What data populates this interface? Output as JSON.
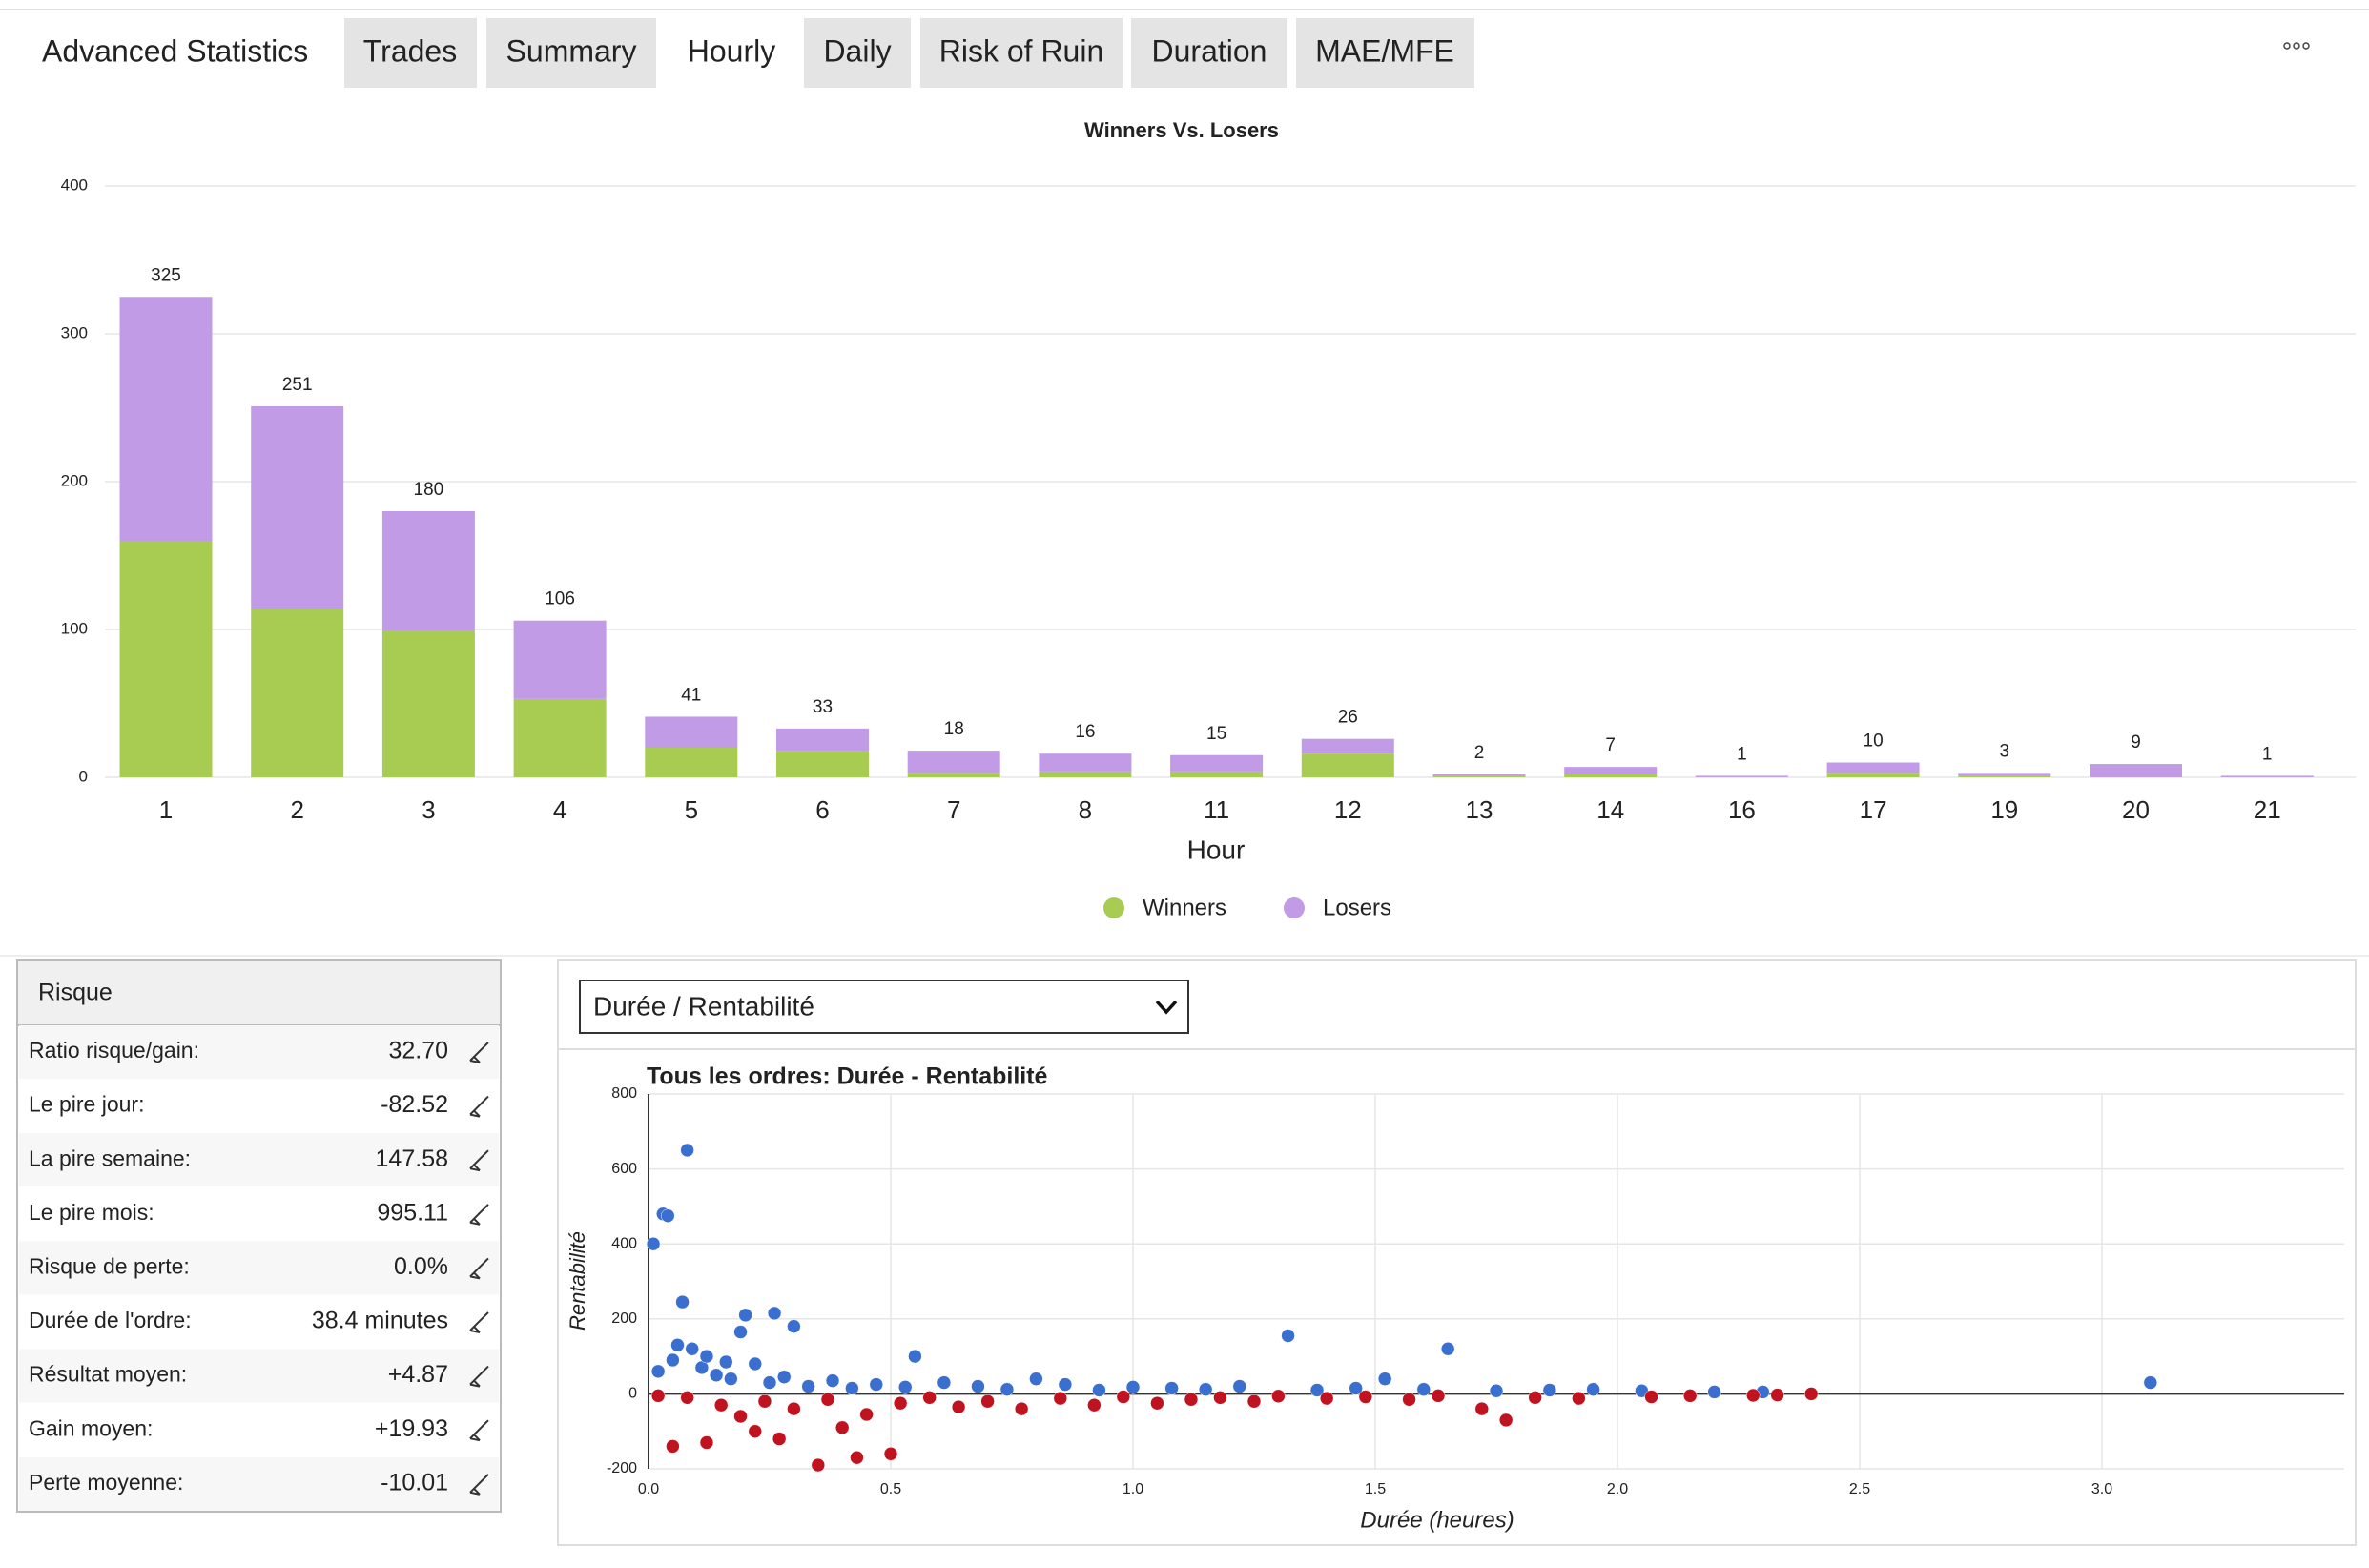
{
  "tabs": [
    "Advanced Statistics",
    "Trades",
    "Summary",
    "Hourly",
    "Daily",
    "Risk of Ruin",
    "Duration",
    "MAE/MFE"
  ],
  "bar_chart": {
    "type": "bar",
    "title": "Winners Vs. Losers",
    "x_label": "Hour",
    "categories": [
      "1",
      "2",
      "3",
      "4",
      "5",
      "6",
      "7",
      "8",
      "11",
      "12",
      "13",
      "14",
      "16",
      "17",
      "19",
      "20",
      "21"
    ],
    "series": [
      {
        "name": "Winners",
        "color": "#a8cc52",
        "values": [
          160,
          114,
          99,
          53,
          20,
          18,
          3,
          4,
          4,
          16,
          1,
          2,
          0,
          3,
          1,
          0,
          0
        ]
      },
      {
        "name": "Losers",
        "color": "#c29be6",
        "values": [
          165,
          137,
          81,
          53,
          21,
          15,
          15,
          12,
          11,
          10,
          1,
          5,
          1,
          7,
          2,
          9,
          1
        ]
      }
    ],
    "totals": [
      325,
      251,
      180,
      106,
      41,
      33,
      18,
      16,
      15,
      26,
      2,
      7,
      1,
      10,
      3,
      9,
      1
    ],
    "ylim": [
      0,
      400
    ],
    "yticks": [
      0,
      100,
      200,
      300,
      400
    ],
    "grid": true
  },
  "risk_table": {
    "title": "Risque",
    "rows": [
      [
        "Ratio risque/gain:",
        "32.70"
      ],
      [
        "Le pire jour:",
        "-82.52"
      ],
      [
        "La pire semaine:",
        "147.58"
      ],
      [
        "Le pire mois:",
        "995.11"
      ],
      [
        "Risque de perte:",
        "0.0%"
      ],
      [
        "Durée de l'ordre:",
        "38.4 minutes"
      ],
      [
        "Résultat moyen:",
        "+4.87"
      ],
      [
        "Gain moyen:",
        "+19.93"
      ],
      [
        "Perte moyenne:",
        "-10.01"
      ]
    ]
  },
  "scatter_chart": {
    "type": "scatter",
    "dropdown": "Durée / Rentabilité",
    "title": "Tous les ordres: Durée - Rentabilité",
    "x_label": "Durée (heures)",
    "y_label": "Rentabilité",
    "xlim": [
      0,
      3.5
    ],
    "xticks": [
      {
        "value": 0,
        "label": "0.0"
      },
      0.5,
      {
        "value": 1,
        "label": "1.0"
      },
      1.5,
      {
        "value": 2,
        "label": "2.0"
      },
      2.5,
      {
        "value": 3,
        "label": "3.0"
      }
    ],
    "ylim": [
      -200,
      800
    ],
    "yticks": [
      -200,
      0,
      200,
      400,
      600,
      800
    ],
    "grid": true,
    "series": [
      {
        "color": "#3a6fd0",
        "x": [
          0.01,
          0.03,
          0.04,
          0.08,
          0.07,
          0.2,
          0.26,
          0.3,
          0.19,
          0.02,
          0.05,
          0.09,
          0.11,
          0.14,
          0.17,
          0.22,
          0.25,
          0.28,
          0.33,
          0.38,
          0.42,
          0.47,
          0.53,
          0.55,
          0.61,
          0.68,
          0.74,
          0.8,
          0.86,
          0.93,
          1.0,
          1.08,
          1.15,
          1.22,
          1.32,
          1.38,
          1.46,
          1.52,
          1.6,
          1.65,
          1.75,
          1.86,
          1.95,
          2.05,
          2.2,
          2.3,
          3.1,
          0.06,
          0.12,
          0.16
        ],
        "y": [
          400,
          480,
          475,
          650,
          245,
          210,
          215,
          180,
          165,
          60,
          90,
          120,
          70,
          50,
          40,
          80,
          30,
          45,
          20,
          35,
          15,
          25,
          18,
          100,
          30,
          20,
          12,
          40,
          25,
          10,
          18,
          15,
          12,
          20,
          155,
          10,
          15,
          40,
          12,
          120,
          8,
          10,
          12,
          8,
          5,
          5,
          30,
          130,
          100,
          85
        ]
      },
      {
        "color": "#c0121f",
        "x": [
          0.05,
          0.12,
          0.22,
          0.35,
          0.43,
          0.5,
          0.27,
          1.77,
          2.4,
          0.02,
          0.08,
          0.15,
          0.19,
          0.24,
          0.3,
          0.37,
          0.45,
          0.52,
          0.58,
          0.64,
          0.7,
          0.77,
          0.85,
          0.92,
          0.98,
          1.05,
          1.12,
          1.18,
          1.25,
          1.3,
          1.4,
          1.48,
          1.57,
          1.63,
          1.72,
          1.83,
          1.92,
          2.07,
          2.15,
          2.28,
          2.33,
          0.4
        ],
        "y": [
          -140,
          -130,
          -100,
          -190,
          -170,
          -160,
          -120,
          -70,
          0,
          -5,
          -10,
          -30,
          -60,
          -20,
          -40,
          -15,
          -55,
          -25,
          -10,
          -35,
          -20,
          -40,
          -12,
          -30,
          -8,
          -25,
          -15,
          -10,
          -20,
          -6,
          -12,
          -8,
          -15,
          -5,
          -40,
          -10,
          -12,
          -8,
          -5,
          -4,
          -3,
          -90
        ]
      }
    ]
  }
}
